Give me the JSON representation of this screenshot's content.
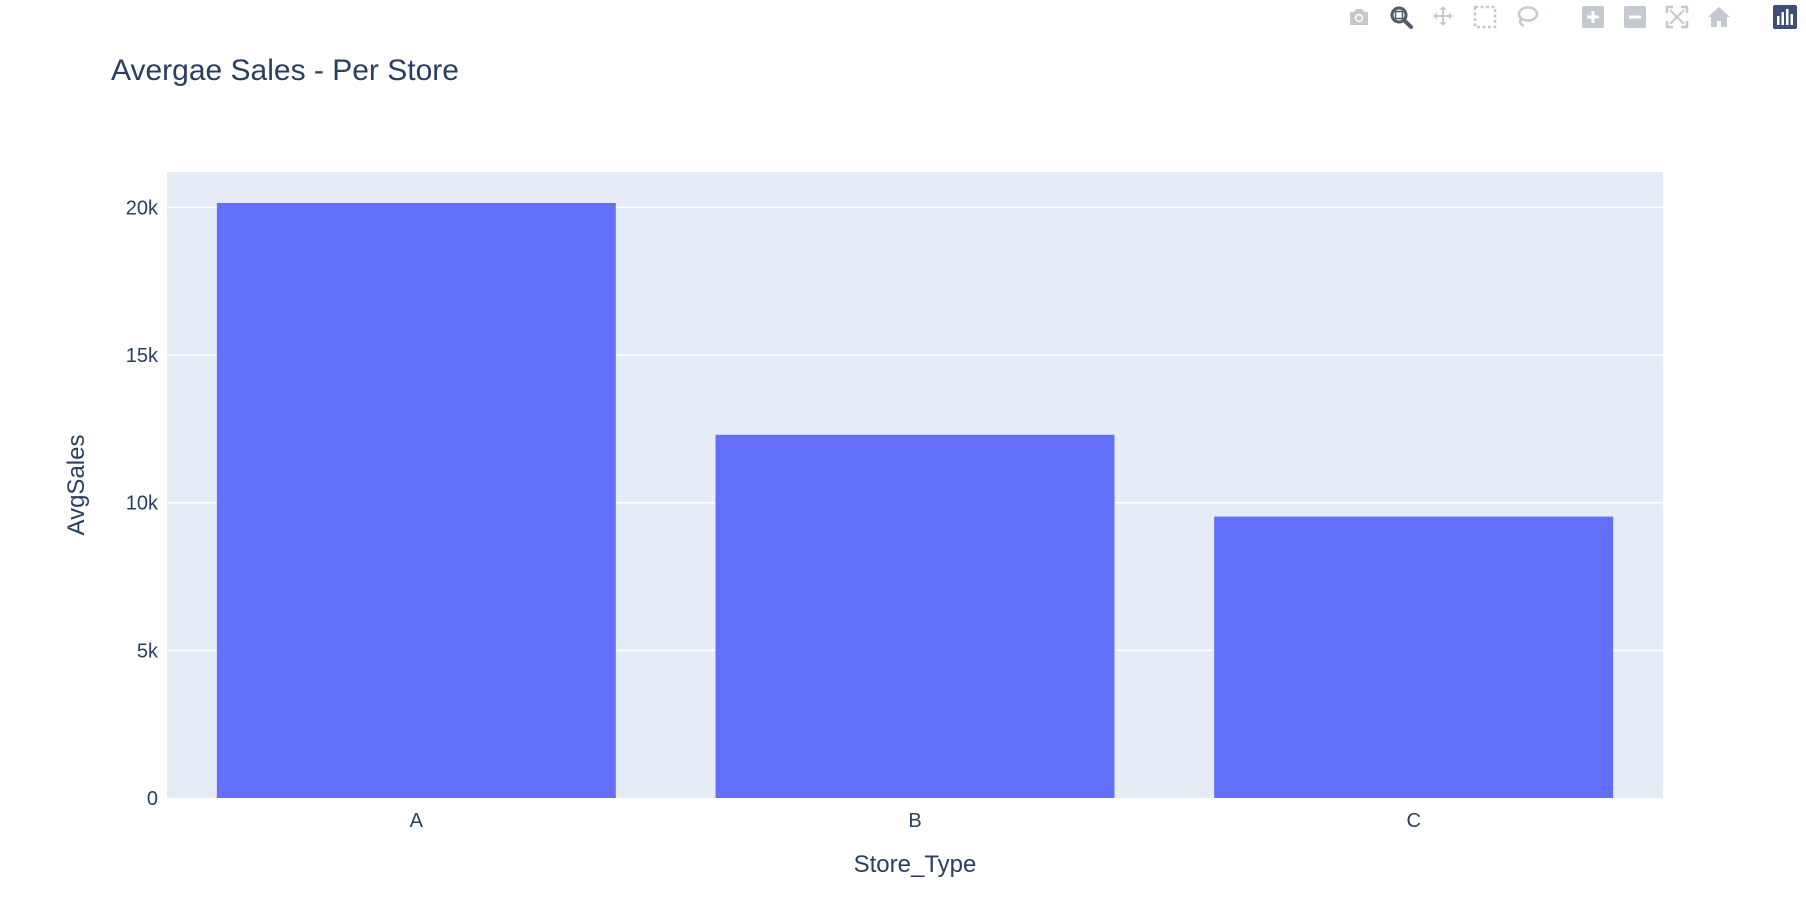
{
  "chart_data": {
    "type": "bar",
    "title": "Avergae Sales - Per Store",
    "xlabel": "Store_Type",
    "ylabel": "AvgSales",
    "categories": [
      "A",
      "B",
      "C"
    ],
    "values": [
      20150,
      12300,
      9530
    ],
    "ylim": [
      0,
      21200
    ],
    "yticks": [
      0,
      5000,
      10000,
      15000,
      20000
    ],
    "ytick_labels": [
      "0",
      "5k",
      "10k",
      "15k",
      "20k"
    ],
    "grid": true,
    "bar_color": "#636efa",
    "plot_bg": "#e5ecf6"
  },
  "modebar": {
    "buttons": [
      {
        "name": "camera-icon",
        "title": "Download plot as a png"
      },
      {
        "name": "zoom-icon",
        "title": "Zoom"
      },
      {
        "name": "pan-icon",
        "title": "Pan"
      },
      {
        "name": "box-select-icon",
        "title": "Box Select"
      },
      {
        "name": "lasso-select-icon",
        "title": "Lasso Select"
      },
      {
        "name": "zoom-in-icon",
        "title": "Zoom in"
      },
      {
        "name": "zoom-out-icon",
        "title": "Zoom out"
      },
      {
        "name": "autoscale-icon",
        "title": "Autoscale"
      },
      {
        "name": "reset-axes-icon",
        "title": "Reset axes"
      },
      {
        "name": "plotly-logo-icon",
        "title": "Produced with Plotly"
      }
    ]
  }
}
